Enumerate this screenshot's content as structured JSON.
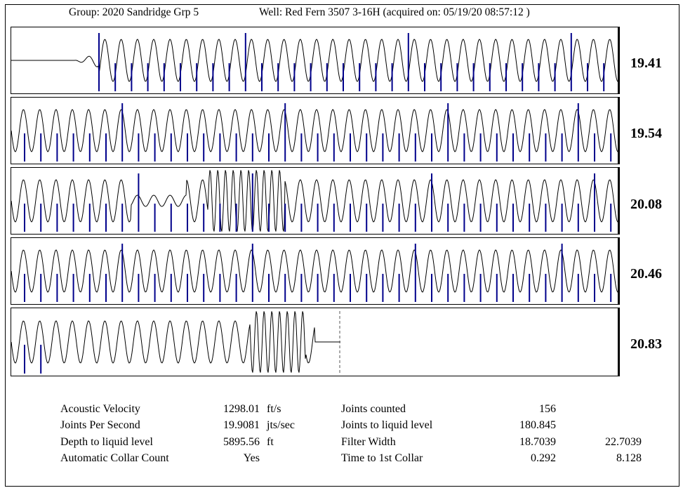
{
  "header": {
    "group": "Group: 2020 Sandridge Grp 5",
    "well": "Well: Red Fern 3507 3-16H (acquired on: 05/19/20 08:57:12 )"
  },
  "traces": [
    {
      "rate": "19.41"
    },
    {
      "rate": "19.54"
    },
    {
      "rate": "20.08"
    },
    {
      "rate": "20.46"
    },
    {
      "rate": "20.83"
    }
  ],
  "stats": {
    "acoustic_velocity": {
      "label": "Acoustic Velocity",
      "value": "1298.01",
      "unit": "ft/s"
    },
    "joints_per_second": {
      "label": "Joints Per Second",
      "value": "19.9081",
      "unit": "jts/sec"
    },
    "depth_to_liquid": {
      "label": "Depth to liquid level",
      "value": "5895.56",
      "unit": "ft"
    },
    "auto_collar_count": {
      "label": "Automatic Collar Count",
      "value": "Yes"
    },
    "joints_counted": {
      "label": "Joints counted",
      "value": "156"
    },
    "joints_to_liquid": {
      "label": "Joints to liquid level",
      "value": "180.845"
    },
    "filter_width": {
      "label": "Filter Width",
      "value": "18.7039",
      "value2": "22.7039"
    },
    "time_to_first_collar": {
      "label": "Time to 1st Collar",
      "value": "0.292",
      "value2": "8.128"
    }
  },
  "colors": {
    "trace": "#000000",
    "collar_marker": "#00008b"
  }
}
